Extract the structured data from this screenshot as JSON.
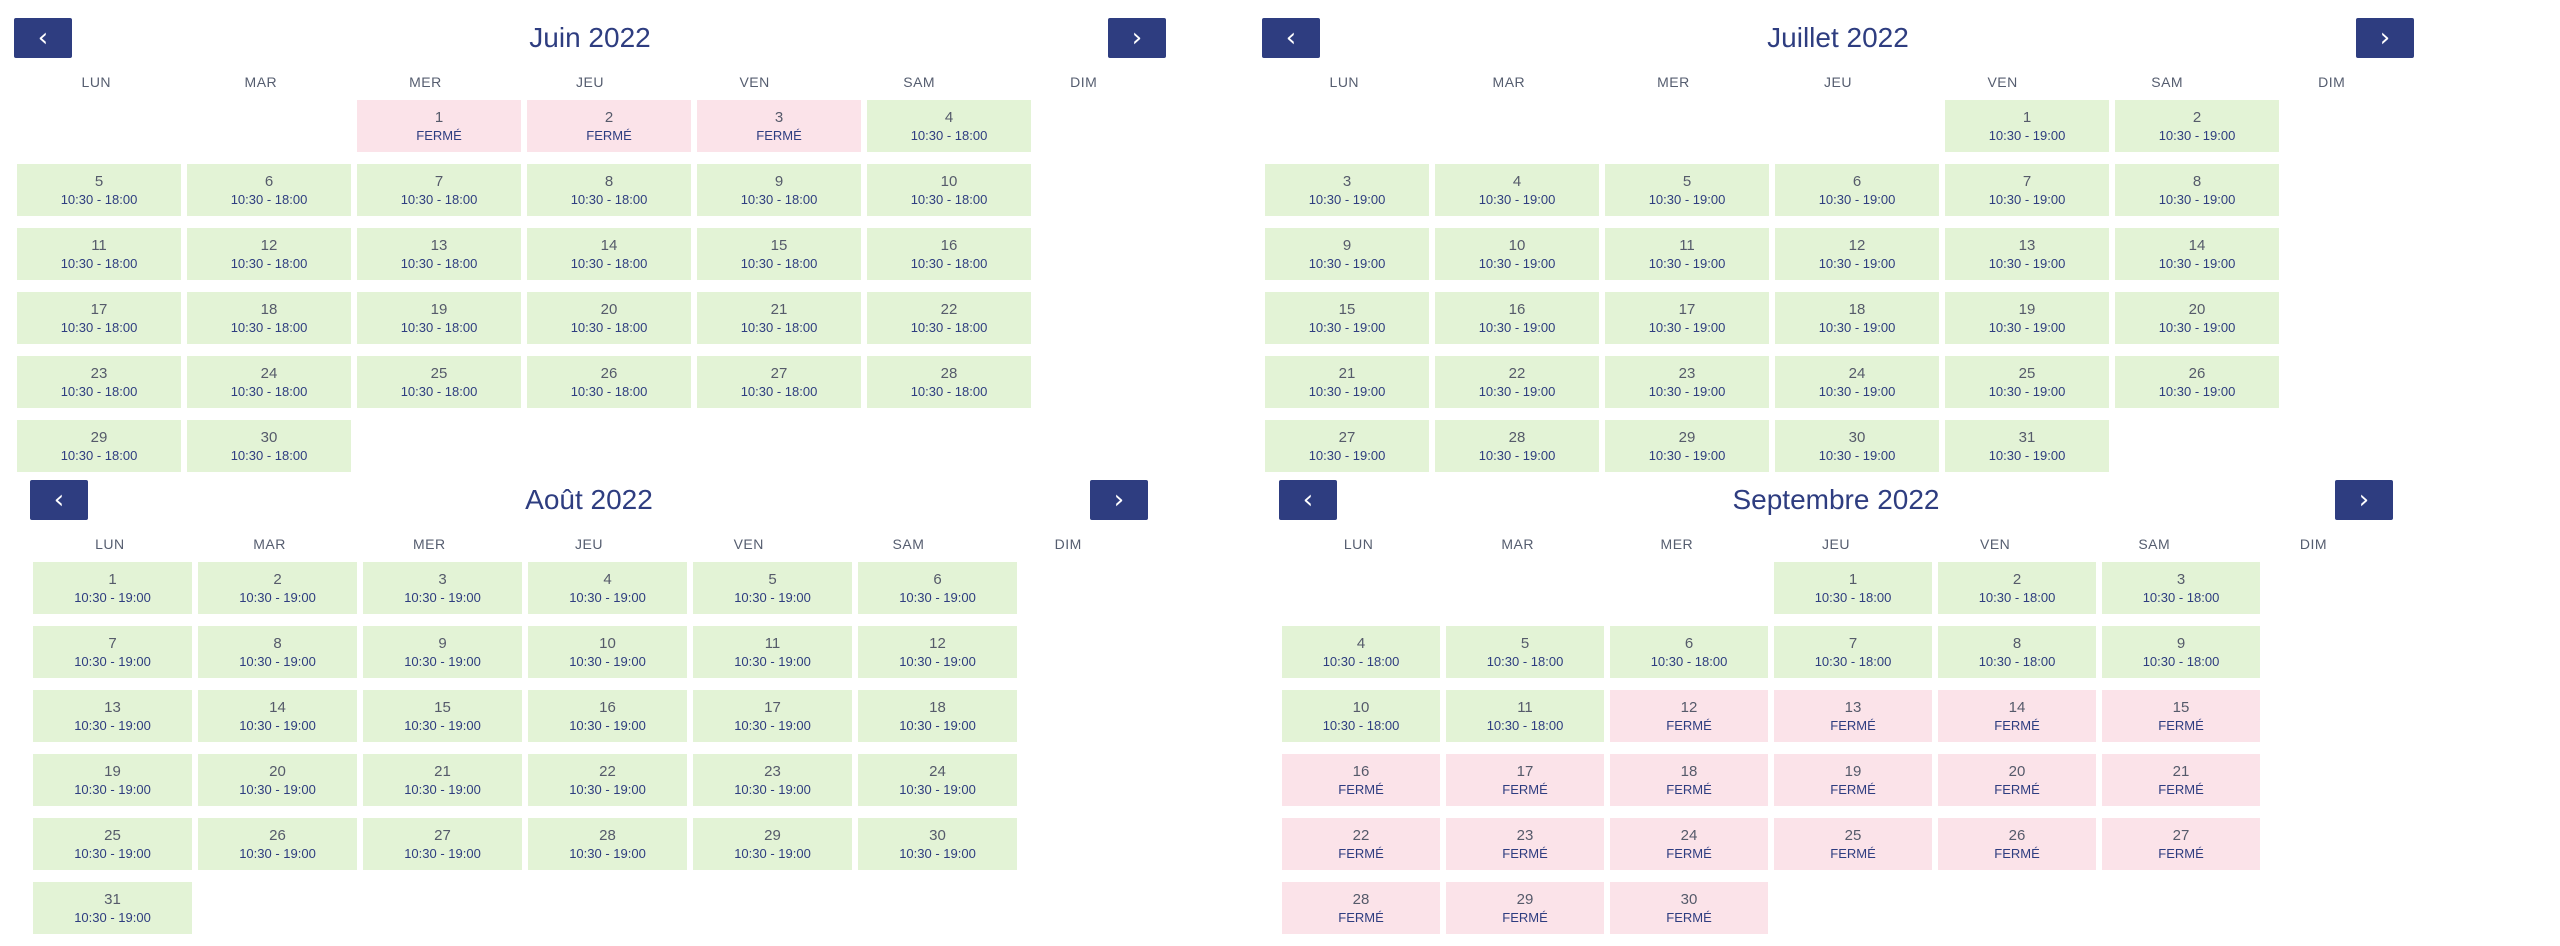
{
  "nav": {
    "prev_symbol": "‹",
    "next_symbol": "›"
  },
  "weekdays": [
    "LUN",
    "MAR",
    "MER",
    "JEU",
    "VEN",
    "SAM",
    "DIM"
  ],
  "calendars": [
    {
      "title": "Juin 2022",
      "days": [
        {
          "d": "",
          "h": "",
          "s": "empty"
        },
        {
          "d": "",
          "h": "",
          "s": "empty"
        },
        {
          "d": "1",
          "h": "FERMÉ",
          "s": "closed"
        },
        {
          "d": "2",
          "h": "FERMÉ",
          "s": "closed"
        },
        {
          "d": "3",
          "h": "FERMÉ",
          "s": "closed"
        },
        {
          "d": "4",
          "h": "10:30 - 18:00",
          "s": "open"
        },
        {
          "d": "5",
          "h": "10:30 - 18:00",
          "s": "open"
        },
        {
          "d": "6",
          "h": "10:30 - 18:00",
          "s": "open"
        },
        {
          "d": "7",
          "h": "10:30 - 18:00",
          "s": "open"
        },
        {
          "d": "8",
          "h": "10:30 - 18:00",
          "s": "open"
        },
        {
          "d": "9",
          "h": "10:30 - 18:00",
          "s": "open"
        },
        {
          "d": "10",
          "h": "10:30 - 18:00",
          "s": "open"
        },
        {
          "d": "11",
          "h": "10:30 - 18:00",
          "s": "open"
        },
        {
          "d": "12",
          "h": "10:30 - 18:00",
          "s": "open"
        },
        {
          "d": "13",
          "h": "10:30 - 18:00",
          "s": "open"
        },
        {
          "d": "14",
          "h": "10:30 - 18:00",
          "s": "open"
        },
        {
          "d": "15",
          "h": "10:30 - 18:00",
          "s": "open"
        },
        {
          "d": "16",
          "h": "10:30 - 18:00",
          "s": "open"
        },
        {
          "d": "17",
          "h": "10:30 - 18:00",
          "s": "open"
        },
        {
          "d": "18",
          "h": "10:30 - 18:00",
          "s": "open"
        },
        {
          "d": "19",
          "h": "10:30 - 18:00",
          "s": "open"
        },
        {
          "d": "20",
          "h": "10:30 - 18:00",
          "s": "open"
        },
        {
          "d": "21",
          "h": "10:30 - 18:00",
          "s": "open"
        },
        {
          "d": "22",
          "h": "10:30 - 18:00",
          "s": "open"
        },
        {
          "d": "23",
          "h": "10:30 - 18:00",
          "s": "open"
        },
        {
          "d": "24",
          "h": "10:30 - 18:00",
          "s": "open"
        },
        {
          "d": "25",
          "h": "10:30 - 18:00",
          "s": "open"
        },
        {
          "d": "26",
          "h": "10:30 - 18:00",
          "s": "open"
        },
        {
          "d": "27",
          "h": "10:30 - 18:00",
          "s": "open"
        },
        {
          "d": "28",
          "h": "10:30 - 18:00",
          "s": "open"
        },
        {
          "d": "29",
          "h": "10:30 - 18:00",
          "s": "open"
        },
        {
          "d": "30",
          "h": "10:30 - 18:00",
          "s": "open"
        }
      ]
    },
    {
      "title": "Juillet 2022",
      "days": [
        {
          "d": "",
          "h": "",
          "s": "empty"
        },
        {
          "d": "",
          "h": "",
          "s": "empty"
        },
        {
          "d": "",
          "h": "",
          "s": "empty"
        },
        {
          "d": "",
          "h": "",
          "s": "empty"
        },
        {
          "d": "1",
          "h": "10:30 - 19:00",
          "s": "open"
        },
        {
          "d": "2",
          "h": "10:30 - 19:00",
          "s": "open"
        },
        {
          "d": "3",
          "h": "10:30 - 19:00",
          "s": "open"
        },
        {
          "d": "4",
          "h": "10:30 - 19:00",
          "s": "open"
        },
        {
          "d": "5",
          "h": "10:30 - 19:00",
          "s": "open"
        },
        {
          "d": "6",
          "h": "10:30 - 19:00",
          "s": "open"
        },
        {
          "d": "7",
          "h": "10:30 - 19:00",
          "s": "open"
        },
        {
          "d": "8",
          "h": "10:30 - 19:00",
          "s": "open"
        },
        {
          "d": "9",
          "h": "10:30 - 19:00",
          "s": "open"
        },
        {
          "d": "10",
          "h": "10:30 - 19:00",
          "s": "open"
        },
        {
          "d": "11",
          "h": "10:30 - 19:00",
          "s": "open"
        },
        {
          "d": "12",
          "h": "10:30 - 19:00",
          "s": "open"
        },
        {
          "d": "13",
          "h": "10:30 - 19:00",
          "s": "open"
        },
        {
          "d": "14",
          "h": "10:30 - 19:00",
          "s": "open"
        },
        {
          "d": "15",
          "h": "10:30 - 19:00",
          "s": "open"
        },
        {
          "d": "16",
          "h": "10:30 - 19:00",
          "s": "open"
        },
        {
          "d": "17",
          "h": "10:30 - 19:00",
          "s": "open"
        },
        {
          "d": "18",
          "h": "10:30 - 19:00",
          "s": "open"
        },
        {
          "d": "19",
          "h": "10:30 - 19:00",
          "s": "open"
        },
        {
          "d": "20",
          "h": "10:30 - 19:00",
          "s": "open"
        },
        {
          "d": "21",
          "h": "10:30 - 19:00",
          "s": "open"
        },
        {
          "d": "22",
          "h": "10:30 - 19:00",
          "s": "open"
        },
        {
          "d": "23",
          "h": "10:30 - 19:00",
          "s": "open"
        },
        {
          "d": "24",
          "h": "10:30 - 19:00",
          "s": "open"
        },
        {
          "d": "25",
          "h": "10:30 - 19:00",
          "s": "open"
        },
        {
          "d": "26",
          "h": "10:30 - 19:00",
          "s": "open"
        },
        {
          "d": "27",
          "h": "10:30 - 19:00",
          "s": "open"
        },
        {
          "d": "28",
          "h": "10:30 - 19:00",
          "s": "open"
        },
        {
          "d": "29",
          "h": "10:30 - 19:00",
          "s": "open"
        },
        {
          "d": "30",
          "h": "10:30 - 19:00",
          "s": "open"
        },
        {
          "d": "31",
          "h": "10:30 - 19:00",
          "s": "open"
        }
      ]
    },
    {
      "title": "Août 2022",
      "days": [
        {
          "d": "1",
          "h": "10:30 - 19:00",
          "s": "open"
        },
        {
          "d": "2",
          "h": "10:30 - 19:00",
          "s": "open"
        },
        {
          "d": "3",
          "h": "10:30 - 19:00",
          "s": "open"
        },
        {
          "d": "4",
          "h": "10:30 - 19:00",
          "s": "open"
        },
        {
          "d": "5",
          "h": "10:30 - 19:00",
          "s": "open"
        },
        {
          "d": "6",
          "h": "10:30 - 19:00",
          "s": "open"
        },
        {
          "d": "7",
          "h": "10:30 - 19:00",
          "s": "open"
        },
        {
          "d": "8",
          "h": "10:30 - 19:00",
          "s": "open"
        },
        {
          "d": "9",
          "h": "10:30 - 19:00",
          "s": "open"
        },
        {
          "d": "10",
          "h": "10:30 - 19:00",
          "s": "open"
        },
        {
          "d": "11",
          "h": "10:30 - 19:00",
          "s": "open"
        },
        {
          "d": "12",
          "h": "10:30 - 19:00",
          "s": "open"
        },
        {
          "d": "13",
          "h": "10:30 - 19:00",
          "s": "open"
        },
        {
          "d": "14",
          "h": "10:30 - 19:00",
          "s": "open"
        },
        {
          "d": "15",
          "h": "10:30 - 19:00",
          "s": "open"
        },
        {
          "d": "16",
          "h": "10:30 - 19:00",
          "s": "open"
        },
        {
          "d": "17",
          "h": "10:30 - 19:00",
          "s": "open"
        },
        {
          "d": "18",
          "h": "10:30 - 19:00",
          "s": "open"
        },
        {
          "d": "19",
          "h": "10:30 - 19:00",
          "s": "open"
        },
        {
          "d": "20",
          "h": "10:30 - 19:00",
          "s": "open"
        },
        {
          "d": "21",
          "h": "10:30 - 19:00",
          "s": "open"
        },
        {
          "d": "22",
          "h": "10:30 - 19:00",
          "s": "open"
        },
        {
          "d": "23",
          "h": "10:30 - 19:00",
          "s": "open"
        },
        {
          "d": "24",
          "h": "10:30 - 19:00",
          "s": "open"
        },
        {
          "d": "25",
          "h": "10:30 - 19:00",
          "s": "open"
        },
        {
          "d": "26",
          "h": "10:30 - 19:00",
          "s": "open"
        },
        {
          "d": "27",
          "h": "10:30 - 19:00",
          "s": "open"
        },
        {
          "d": "28",
          "h": "10:30 - 19:00",
          "s": "open"
        },
        {
          "d": "29",
          "h": "10:30 - 19:00",
          "s": "open"
        },
        {
          "d": "30",
          "h": "10:30 - 19:00",
          "s": "open"
        },
        {
          "d": "31",
          "h": "10:30 - 19:00",
          "s": "open"
        }
      ]
    },
    {
      "title": "Septembre 2022",
      "days": [
        {
          "d": "",
          "h": "",
          "s": "empty"
        },
        {
          "d": "",
          "h": "",
          "s": "empty"
        },
        {
          "d": "",
          "h": "",
          "s": "empty"
        },
        {
          "d": "1",
          "h": "10:30 - 18:00",
          "s": "open"
        },
        {
          "d": "2",
          "h": "10:30 - 18:00",
          "s": "open"
        },
        {
          "d": "3",
          "h": "10:30 - 18:00",
          "s": "open"
        },
        {
          "d": "4",
          "h": "10:30 - 18:00",
          "s": "open"
        },
        {
          "d": "5",
          "h": "10:30 - 18:00",
          "s": "open"
        },
        {
          "d": "6",
          "h": "10:30 - 18:00",
          "s": "open"
        },
        {
          "d": "7",
          "h": "10:30 - 18:00",
          "s": "open"
        },
        {
          "d": "8",
          "h": "10:30 - 18:00",
          "s": "open"
        },
        {
          "d": "9",
          "h": "10:30 - 18:00",
          "s": "open"
        },
        {
          "d": "10",
          "h": "10:30 - 18:00",
          "s": "open"
        },
        {
          "d": "11",
          "h": "10:30 - 18:00",
          "s": "open"
        },
        {
          "d": "12",
          "h": "FERMÉ",
          "s": "closed"
        },
        {
          "d": "13",
          "h": "FERMÉ",
          "s": "closed"
        },
        {
          "d": "14",
          "h": "FERMÉ",
          "s": "closed"
        },
        {
          "d": "15",
          "h": "FERMÉ",
          "s": "closed"
        },
        {
          "d": "16",
          "h": "FERMÉ",
          "s": "closed"
        },
        {
          "d": "17",
          "h": "FERMÉ",
          "s": "closed"
        },
        {
          "d": "18",
          "h": "FERMÉ",
          "s": "closed"
        },
        {
          "d": "19",
          "h": "FERMÉ",
          "s": "closed"
        },
        {
          "d": "20",
          "h": "FERMÉ",
          "s": "closed"
        },
        {
          "d": "21",
          "h": "FERMÉ",
          "s": "closed"
        },
        {
          "d": "22",
          "h": "FERMÉ",
          "s": "closed"
        },
        {
          "d": "23",
          "h": "FERMÉ",
          "s": "closed"
        },
        {
          "d": "24",
          "h": "FERMÉ",
          "s": "closed"
        },
        {
          "d": "25",
          "h": "FERMÉ",
          "s": "closed"
        },
        {
          "d": "26",
          "h": "FERMÉ",
          "s": "closed"
        },
        {
          "d": "27",
          "h": "FERMÉ",
          "s": "closed"
        },
        {
          "d": "28",
          "h": "FERMÉ",
          "s": "closed"
        },
        {
          "d": "29",
          "h": "FERMÉ",
          "s": "closed"
        },
        {
          "d": "30",
          "h": "FERMÉ",
          "s": "closed"
        }
      ]
    }
  ]
}
